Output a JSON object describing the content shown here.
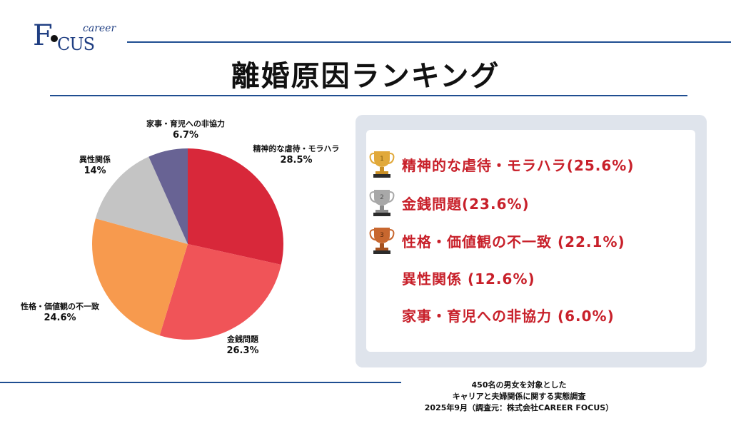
{
  "header": {
    "logo_career": "career",
    "logo_letter_f": "F",
    "logo_rest": "CUS",
    "title": "離婚原因ランキング"
  },
  "chart_data": {
    "type": "pie",
    "title": "",
    "slices": [
      {
        "label": "精神的な虐待・モラハラ",
        "value": 28.5,
        "display": "28.5%",
        "color": "#d8283a"
      },
      {
        "label": "金銭問題",
        "value": 26.3,
        "display": "26.3%",
        "color": "#f05458"
      },
      {
        "label": "性格・価値観の不一致",
        "value": 24.6,
        "display": "24.6%",
        "color": "#f79a4e"
      },
      {
        "label": "異性関係",
        "value": 14,
        "display": "14%",
        "color": "#c4c4c4"
      },
      {
        "label": "家事・育児への非協力",
        "value": 6.7,
        "display": "6.7%",
        "color": "#686394"
      }
    ]
  },
  "ranking": {
    "items": [
      {
        "text": "精神的な虐待・モラハラ(25.6%)",
        "trophy": "gold-trophy",
        "rank": "1"
      },
      {
        "text": "金銭問題(23.6%)",
        "trophy": "silver-trophy",
        "rank": "2"
      },
      {
        "text": "性格・価値観の不一致 (22.1%)",
        "trophy": "bronze-trophy",
        "rank": "3"
      },
      {
        "text": "異性関係 (12.6%)",
        "trophy": "",
        "rank": ""
      },
      {
        "text": "家事・育児への非協力 (6.0%)",
        "trophy": "",
        "rank": ""
      }
    ],
    "colors": {
      "gold": "#e1a93a",
      "silver": "#a8a8a8",
      "bronze": "#c8672f",
      "text": "#c8202a"
    }
  },
  "footnote": {
    "line1": "450名の男女を対象とした",
    "line2": "キャリアと夫婦関係に関する実態調査",
    "line3": "2025年9月（調査元：株式会社CAREER FOCUS）"
  }
}
